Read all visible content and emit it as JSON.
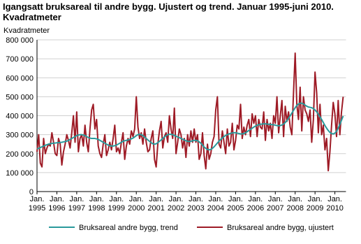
{
  "chart_data": {
    "type": "line",
    "title": "Igangsatt bruksareal til andre bygg. Ujustert og trend. Januar 1995-juni 2010. Kvadratmeter",
    "y_label": "Kvadratmeter",
    "categories": [
      "Jan. 1995",
      null,
      null,
      null,
      null,
      null,
      null,
      null,
      null,
      null,
      null,
      null,
      "Jan. 1996",
      null,
      null,
      null,
      null,
      null,
      null,
      null,
      null,
      null,
      null,
      null,
      "Jan. 1997",
      null,
      null,
      null,
      null,
      null,
      null,
      null,
      null,
      null,
      null,
      null,
      "Jan. 1998",
      null,
      null,
      null,
      null,
      null,
      null,
      null,
      null,
      null,
      null,
      null,
      "Jan. 1999",
      null,
      null,
      null,
      null,
      null,
      null,
      null,
      null,
      null,
      null,
      null,
      "Jan. 2000",
      null,
      null,
      null,
      null,
      null,
      null,
      null,
      null,
      null,
      null,
      null,
      "Jan. 2001",
      null,
      null,
      null,
      null,
      null,
      null,
      null,
      null,
      null,
      null,
      null,
      "Jan. 2002",
      null,
      null,
      null,
      null,
      null,
      null,
      null,
      null,
      null,
      null,
      null,
      "Jan. 2003",
      null,
      null,
      null,
      null,
      null,
      null,
      null,
      null,
      null,
      null,
      null,
      "Jan. 2004",
      null,
      null,
      null,
      null,
      null,
      null,
      null,
      null,
      null,
      null,
      null,
      "Jan. 2005",
      null,
      null,
      null,
      null,
      null,
      null,
      null,
      null,
      null,
      null,
      null,
      "Jan. 2006",
      null,
      null,
      null,
      null,
      null,
      null,
      null,
      null,
      null,
      null,
      null,
      "Jan. 2007",
      null,
      null,
      null,
      null,
      null,
      null,
      null,
      null,
      null,
      null,
      null,
      "Jan. 2008",
      null,
      null,
      null,
      null,
      null,
      null,
      null,
      null,
      null,
      null,
      null,
      "Jan. 2009",
      null,
      null,
      null,
      null,
      null,
      null,
      null,
      null,
      null,
      null,
      null,
      "Jan. 2010",
      null,
      null,
      null,
      null,
      null
    ],
    "series": [
      {
        "name": "Bruksareal andre bygg, trend",
        "color": "#2a9a9c",
        "values": [
          225000,
          228000,
          232000,
          236000,
          240000,
          244000,
          247000,
          250000,
          252000,
          254000,
          255000,
          256000,
          257000,
          258000,
          259000,
          260000,
          262000,
          264000,
          266000,
          270000,
          275000,
          280000,
          285000,
          290000,
          295000,
          298000,
          300000,
          300000,
          298000,
          295000,
          290000,
          285000,
          282000,
          280000,
          280000,
          280000,
          278000,
          275000,
          270000,
          265000,
          260000,
          255000,
          250000,
          245000,
          242000,
          240000,
          240000,
          242000,
          245000,
          250000,
          255000,
          260000,
          265000,
          268000,
          270000,
          272000,
          275000,
          278000,
          282000,
          288000,
          295000,
          300000,
          302000,
          300000,
          295000,
          288000,
          280000,
          272000,
          265000,
          258000,
          252000,
          250000,
          252000,
          258000,
          265000,
          272000,
          280000,
          288000,
          295000,
          300000,
          302000,
          302000,
          300000,
          296000,
          292000,
          288000,
          284000,
          280000,
          276000,
          272000,
          268000,
          265000,
          264000,
          265000,
          268000,
          270000,
          270000,
          268000,
          262000,
          255000,
          245000,
          235000,
          228000,
          222000,
          220000,
          222000,
          228000,
          236000,
          246000,
          256000,
          266000,
          275000,
          283000,
          290000,
          296000,
          300000,
          304000,
          307000,
          309000,
          310000,
          310000,
          308000,
          306000,
          304000,
          304000,
          306000,
          310000,
          316000,
          322000,
          328000,
          334000,
          340000,
          345000,
          350000,
          353000,
          355000,
          356000,
          357000,
          357000,
          356000,
          355000,
          354000,
          353000,
          352000,
          350000,
          348000,
          347000,
          348000,
          351000,
          356000,
          364000,
          374000,
          386000,
          400000,
          414000,
          428000,
          442000,
          454000,
          462000,
          466000,
          466000,
          462000,
          456000,
          450000,
          446000,
          444000,
          442000,
          438000,
          430000,
          420000,
          408000,
          394000,
          380000,
          364000,
          348000,
          334000,
          322000,
          312000,
          306000,
          304000,
          308000,
          318000,
          334000,
          354000,
          376000,
          398000
        ]
      },
      {
        "name": "Bruksareal andre bygg, ujustert",
        "color": "#9e1b26",
        "values": [
          210000,
          300000,
          150000,
          130000,
          280000,
          200000,
          230000,
          250000,
          240000,
          310000,
          260000,
          200000,
          190000,
          280000,
          250000,
          140000,
          210000,
          250000,
          300000,
          270000,
          230000,
          310000,
          400000,
          260000,
          420000,
          210000,
          280000,
          300000,
          240000,
          350000,
          260000,
          210000,
          330000,
          430000,
          460000,
          330000,
          380000,
          240000,
          200000,
          180000,
          250000,
          300000,
          190000,
          220000,
          260000,
          220000,
          280000,
          350000,
          210000,
          230000,
          200000,
          260000,
          310000,
          170000,
          240000,
          280000,
          250000,
          320000,
          290000,
          330000,
          500000,
          340000,
          280000,
          310000,
          250000,
          330000,
          260000,
          210000,
          220000,
          280000,
          320000,
          170000,
          130000,
          250000,
          320000,
          370000,
          230000,
          290000,
          310000,
          260000,
          400000,
          330000,
          280000,
          440000,
          200000,
          260000,
          330000,
          300000,
          230000,
          280000,
          180000,
          300000,
          240000,
          320000,
          260000,
          330000,
          260000,
          300000,
          170000,
          200000,
          310000,
          190000,
          120000,
          250000,
          170000,
          200000,
          260000,
          290000,
          430000,
          500000,
          250000,
          230000,
          320000,
          260000,
          200000,
          330000,
          240000,
          260000,
          360000,
          220000,
          270000,
          350000,
          330000,
          460000,
          280000,
          340000,
          300000,
          350000,
          380000,
          290000,
          410000,
          360000,
          400000,
          290000,
          380000,
          340000,
          330000,
          420000,
          270000,
          380000,
          320000,
          360000,
          280000,
          400000,
          360000,
          500000,
          310000,
          400000,
          480000,
          290000,
          450000,
          370000,
          420000,
          340000,
          300000,
          520000,
          730000,
          460000,
          380000,
          550000,
          320000,
          500000,
          430000,
          410000,
          370000,
          430000,
          260000,
          380000,
          630000,
          520000,
          310000,
          460000,
          300000,
          350000,
          220000,
          280000,
          110000,
          210000,
          350000,
          470000,
          410000,
          290000,
          480000,
          300000,
          420000,
          500000
        ]
      }
    ],
    "ylim": [
      0,
      800000
    ],
    "yticks": [
      0,
      {
        "value": 100000,
        "label": "100 000"
      },
      {
        "value": 200000,
        "label": "200 000"
      },
      {
        "value": 300000,
        "label": "300 000"
      },
      {
        "value": 400000,
        "label": "400 000"
      },
      {
        "value": 500000,
        "label": "500 000"
      },
      {
        "value": 600000,
        "label": "600 000"
      },
      {
        "value": 700000,
        "label": "700 000"
      },
      {
        "value": 800000,
        "label": "800 000"
      }
    ],
    "grid": true
  }
}
